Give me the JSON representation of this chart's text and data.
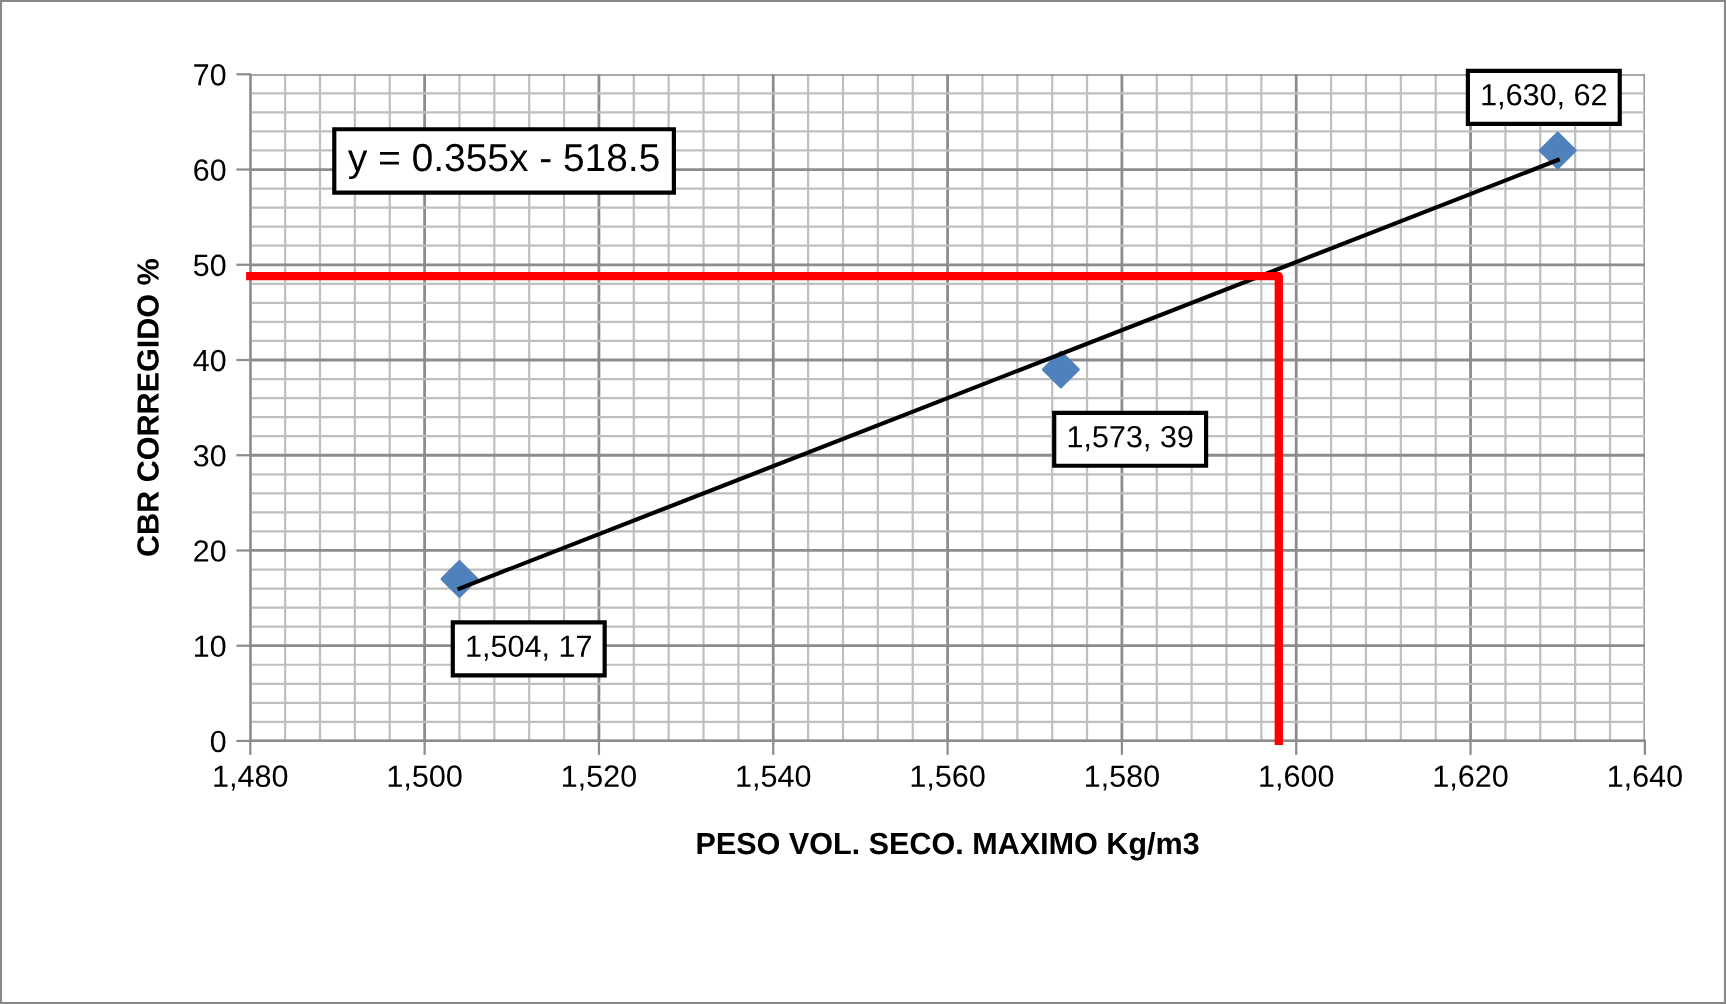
{
  "chart_data": {
    "type": "scatter",
    "xlabel": "PESO VOL. SECO. MAXIMO Kg/m3",
    "ylabel": "CBR CORREGIDO %",
    "xlim": [
      1480,
      1640
    ],
    "ylim": [
      0,
      70
    ],
    "xticks": [
      {
        "value": 1480,
        "label": "1,480"
      },
      {
        "value": 1500,
        "label": "1,500"
      },
      {
        "value": 1520,
        "label": "1,520"
      },
      {
        "value": 1540,
        "label": "1,540"
      },
      {
        "value": 1560,
        "label": "1,560"
      },
      {
        "value": 1580,
        "label": "1,580"
      },
      {
        "value": 1600,
        "label": "1,600"
      },
      {
        "value": 1620,
        "label": "1,620"
      },
      {
        "value": 1640,
        "label": "1,640"
      }
    ],
    "yticks": [
      0,
      10,
      20,
      30,
      40,
      50,
      60,
      70
    ],
    "grid": true,
    "series": [
      {
        "color": "#4f81bd",
        "marker": "diamond",
        "x": [
          1504,
          1573,
          1630
        ],
        "values": [
          17,
          39,
          62
        ],
        "value_labels": [
          "1,504, 17",
          "1,573, 39",
          "1,630, 62"
        ]
      },
      {
        "type": "line",
        "color": "#000000",
        "marker": "none",
        "x": [
          1504,
          1630
        ],
        "values": [
          16,
          61
        ]
      },
      {
        "type": "line",
        "color": "#ff0000",
        "marker": "none",
        "x": [
          1480,
          1598,
          1598
        ],
        "values": [
          48.8,
          48.8,
          0
        ]
      }
    ],
    "annotations": [
      "y = 0.355x - 518.5"
    ]
  }
}
